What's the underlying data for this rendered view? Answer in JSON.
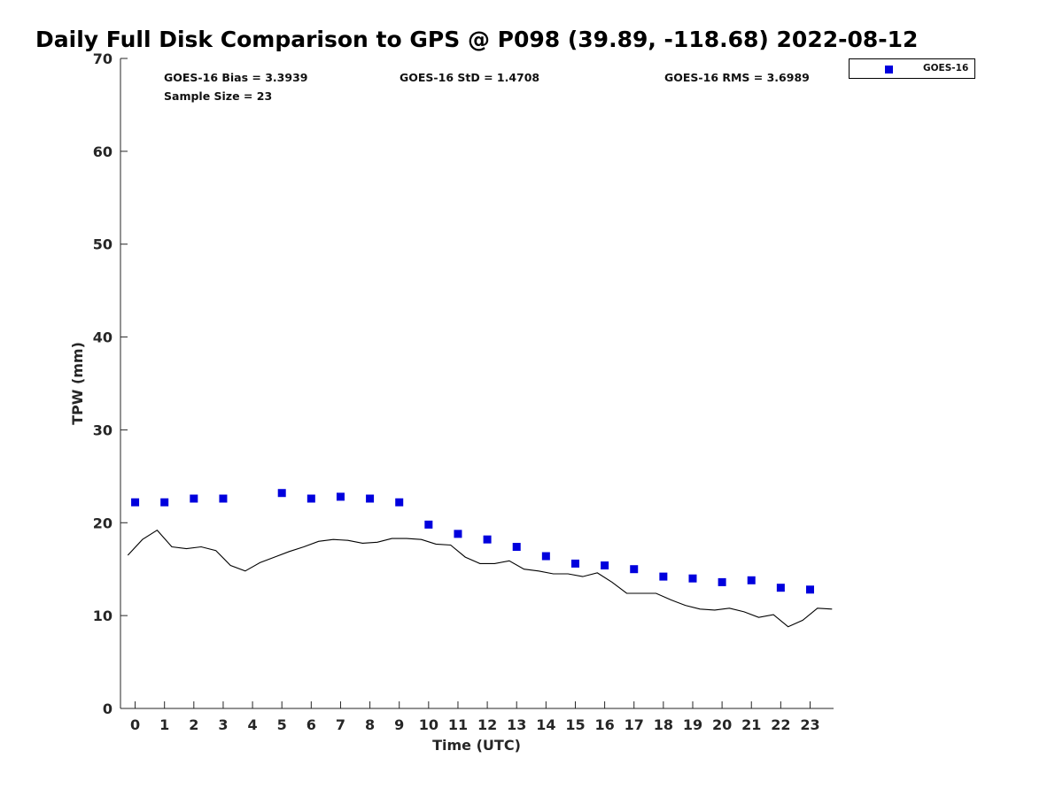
{
  "chart_data": {
    "type": "scatter",
    "title": "Daily Full Disk Comparison to GPS @ P098 (39.89, -118.68) 2022-08-12",
    "xlabel": "Time (UTC)",
    "ylabel": "TPW (mm)",
    "xlim": [
      -0.5,
      23.8
    ],
    "ylim": [
      0,
      70
    ],
    "xticks": [
      0,
      1,
      2,
      3,
      4,
      5,
      6,
      7,
      8,
      9,
      10,
      11,
      12,
      13,
      14,
      15,
      16,
      17,
      18,
      19,
      20,
      21,
      22,
      23
    ],
    "yticks": [
      0,
      10,
      20,
      30,
      40,
      50,
      60,
      70
    ],
    "grid": false,
    "legend_position": "top-right, outside plot",
    "stats": {
      "bias": "GOES-16 Bias = 3.3939",
      "std": "GOES-16 StD = 1.4708",
      "rms": "GOES-16 RMS = 3.6989",
      "sample_size": "Sample Size = 23"
    },
    "series": [
      {
        "name": "GOES-16",
        "kind": "scatter",
        "marker": "square",
        "color": "#0000dd",
        "x": [
          0,
          1,
          2,
          3,
          5,
          6,
          7,
          8,
          9,
          10,
          11,
          12,
          13,
          14,
          15,
          16,
          17,
          18,
          19,
          20,
          21,
          22,
          23
        ],
        "y": [
          22.2,
          22.2,
          22.6,
          22.6,
          23.2,
          22.6,
          22.8,
          22.6,
          22.2,
          19.8,
          18.8,
          18.2,
          17.4,
          16.4,
          15.6,
          15.4,
          15.0,
          14.2,
          14.0,
          13.6,
          13.8,
          13.0,
          12.8
        ]
      },
      {
        "kind": "line",
        "color": "#000000",
        "x": [
          -0.25,
          0.25,
          0.75,
          1.25,
          1.75,
          2.25,
          2.75,
          3.25,
          3.75,
          4.25,
          4.75,
          5.25,
          5.75,
          6.25,
          6.75,
          7.25,
          7.75,
          8.25,
          8.75,
          9.25,
          9.75,
          10.25,
          10.75,
          11.25,
          11.75,
          12.25,
          12.75,
          13.25,
          13.75,
          14.25,
          14.75,
          15.25,
          15.75,
          16.25,
          16.75,
          17.25,
          17.75,
          18.25,
          18.75,
          19.25,
          19.75,
          20.25,
          20.75,
          21.25,
          21.75,
          22.25,
          22.75,
          23.25,
          23.75
        ],
        "y": [
          16.5,
          18.2,
          19.2,
          17.4,
          17.2,
          17.4,
          17.0,
          15.4,
          14.8,
          15.7,
          16.3,
          16.9,
          17.4,
          18.0,
          18.2,
          18.1,
          17.8,
          17.9,
          18.3,
          18.3,
          18.2,
          17.7,
          17.6,
          16.3,
          15.6,
          15.6,
          15.9,
          15.0,
          14.8,
          14.5,
          14.5,
          14.2,
          14.6,
          13.6,
          12.4,
          12.4,
          12.4,
          11.7,
          11.1,
          10.7,
          10.6,
          10.8,
          10.4,
          9.8,
          10.1,
          8.8,
          9.5,
          10.8,
          10.7
        ]
      }
    ]
  }
}
